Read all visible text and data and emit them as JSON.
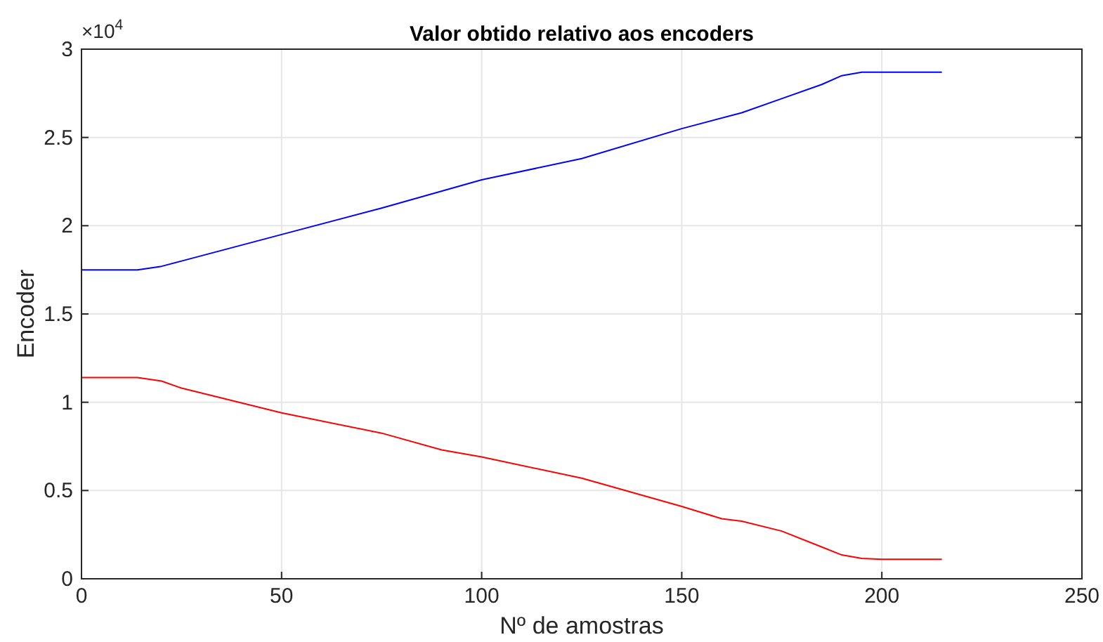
{
  "chart_data": {
    "type": "line",
    "title": "Valor obtido relativo aos encoders",
    "xlabel": "Nº de amostras",
    "ylabel": "Encoder",
    "annotations": [
      "×10$^{4}$"
    ],
    "series": [
      {
        "color": "#0000ff",
        "x": [
          0,
          14,
          20,
          25,
          50,
          75,
          100,
          125,
          150,
          165,
          175,
          185,
          190,
          195,
          200,
          215
        ],
        "values": [
          1.75,
          1.75,
          1.77,
          1.8,
          1.95,
          2.1,
          2.26,
          2.38,
          2.55,
          2.64,
          2.72,
          2.8,
          2.85,
          2.87,
          2.87,
          2.87
        ]
      },
      {
        "color": "#ff0000",
        "x": [
          0,
          14,
          20,
          25,
          50,
          75,
          90,
          100,
          125,
          150,
          160,
          165,
          175,
          185,
          190,
          195,
          200,
          215
        ],
        "values": [
          1.14,
          1.14,
          1.12,
          1.08,
          0.94,
          0.825,
          0.73,
          0.69,
          0.57,
          0.41,
          0.34,
          0.326,
          0.27,
          0.18,
          0.135,
          0.115,
          0.11,
          0.11
        ]
      }
    ],
    "xlim": [
      0,
      250
    ],
    "xticks": [
      0,
      50,
      100,
      150,
      200,
      250
    ],
    "ylim": [
      0,
      3
    ],
    "yticks": [
      0,
      0.5,
      1,
      1.5,
      2,
      2.5,
      3
    ],
    "grid": true,
    "line_style": "solid"
  }
}
